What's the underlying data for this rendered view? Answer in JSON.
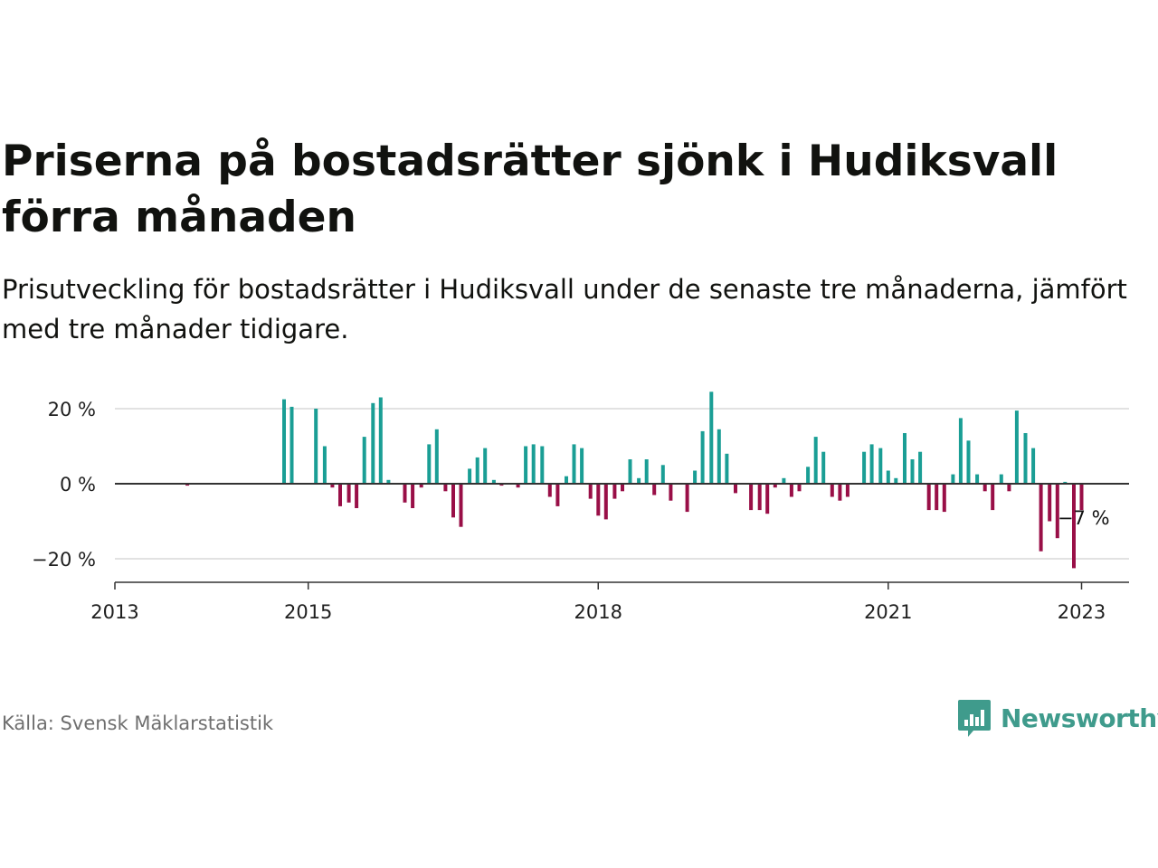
{
  "title": "Priserna på bostadsrätter sjönk i Hudiksvall förra månaden",
  "subtitle": "Prisutveckling för bostadsrätter i Hudiksvall under de senaste tre månaderna, jämfört med tre månader tidigare.",
  "source": "Källa: Svensk Mäklarstatistik",
  "brand": "Newsworthy",
  "colors": {
    "positive": "#1a9e95",
    "negative": "#990f47",
    "brand": "#3f9b8c",
    "axis": "#333333",
    "grid": "#d8d8d8"
  },
  "chart_data": {
    "type": "bar",
    "x_unit": "year (decimal, monthly bars)",
    "xlim": [
      2013.0,
      2023.5
    ],
    "ylim": [
      -26,
      27
    ],
    "y_ticks": [
      20,
      0,
      -20
    ],
    "y_tick_labels": [
      "20 %",
      "0 %",
      "−20 %"
    ],
    "x_ticks": [
      2013,
      2015,
      2018,
      2021,
      2023
    ],
    "x_tick_labels": [
      "2013",
      "2015",
      "2018",
      "2021",
      "2023"
    ],
    "grid": true,
    "annotations": [
      {
        "text": "−7 %",
        "x": 2022.92,
        "y": -7
      }
    ],
    "bars": [
      {
        "x": 2013.75,
        "y": -0.5
      },
      {
        "x": 2014.75,
        "y": 22.5
      },
      {
        "x": 2014.83,
        "y": 20.5
      },
      {
        "x": 2015.08,
        "y": 20
      },
      {
        "x": 2015.17,
        "y": 10
      },
      {
        "x": 2015.25,
        "y": -1
      },
      {
        "x": 2015.33,
        "y": -6
      },
      {
        "x": 2015.42,
        "y": -5
      },
      {
        "x": 2015.5,
        "y": -6.5
      },
      {
        "x": 2015.58,
        "y": 12.5
      },
      {
        "x": 2015.67,
        "y": 21.5
      },
      {
        "x": 2015.75,
        "y": 23
      },
      {
        "x": 2015.83,
        "y": 1
      },
      {
        "x": 2016.0,
        "y": -5
      },
      {
        "x": 2016.08,
        "y": -6.5
      },
      {
        "x": 2016.17,
        "y": -1
      },
      {
        "x": 2016.25,
        "y": 10.5
      },
      {
        "x": 2016.33,
        "y": 14.5
      },
      {
        "x": 2016.42,
        "y": -2
      },
      {
        "x": 2016.5,
        "y": -9
      },
      {
        "x": 2016.58,
        "y": -11.5
      },
      {
        "x": 2016.67,
        "y": 4
      },
      {
        "x": 2016.75,
        "y": 7
      },
      {
        "x": 2016.83,
        "y": 9.5
      },
      {
        "x": 2016.92,
        "y": 1
      },
      {
        "x": 2017.0,
        "y": -0.5
      },
      {
        "x": 2017.17,
        "y": -1
      },
      {
        "x": 2017.25,
        "y": 10
      },
      {
        "x": 2017.33,
        "y": 10.5
      },
      {
        "x": 2017.42,
        "y": 10
      },
      {
        "x": 2017.5,
        "y": -3.5
      },
      {
        "x": 2017.58,
        "y": -6
      },
      {
        "x": 2017.67,
        "y": 2
      },
      {
        "x": 2017.75,
        "y": 10.5
      },
      {
        "x": 2017.83,
        "y": 9.5
      },
      {
        "x": 2017.92,
        "y": -4
      },
      {
        "x": 2018.0,
        "y": -8.5
      },
      {
        "x": 2018.08,
        "y": -9.5
      },
      {
        "x": 2018.17,
        "y": -4
      },
      {
        "x": 2018.25,
        "y": -2
      },
      {
        "x": 2018.33,
        "y": 6.5
      },
      {
        "x": 2018.42,
        "y": 1.5
      },
      {
        "x": 2018.5,
        "y": 6.5
      },
      {
        "x": 2018.58,
        "y": -3
      },
      {
        "x": 2018.67,
        "y": 5
      },
      {
        "x": 2018.75,
        "y": -4.5
      },
      {
        "x": 2018.92,
        "y": -7.5
      },
      {
        "x": 2019.0,
        "y": 3.5
      },
      {
        "x": 2019.08,
        "y": 14
      },
      {
        "x": 2019.17,
        "y": 24.5
      },
      {
        "x": 2019.25,
        "y": 14.5
      },
      {
        "x": 2019.33,
        "y": 8
      },
      {
        "x": 2019.42,
        "y": -2.5
      },
      {
        "x": 2019.58,
        "y": -7
      },
      {
        "x": 2019.67,
        "y": -7
      },
      {
        "x": 2019.75,
        "y": -8
      },
      {
        "x": 2019.83,
        "y": -1
      },
      {
        "x": 2019.92,
        "y": 1.5
      },
      {
        "x": 2020.0,
        "y": -3.5
      },
      {
        "x": 2020.08,
        "y": -2
      },
      {
        "x": 2020.17,
        "y": 4.5
      },
      {
        "x": 2020.25,
        "y": 12.5
      },
      {
        "x": 2020.33,
        "y": 8.5
      },
      {
        "x": 2020.42,
        "y": -3.5
      },
      {
        "x": 2020.5,
        "y": -4.5
      },
      {
        "x": 2020.58,
        "y": -3.5
      },
      {
        "x": 2020.75,
        "y": 8.5
      },
      {
        "x": 2020.83,
        "y": 10.5
      },
      {
        "x": 2020.92,
        "y": 9.5
      },
      {
        "x": 2021.0,
        "y": 3.5
      },
      {
        "x": 2021.08,
        "y": 1.5
      },
      {
        "x": 2021.17,
        "y": 13.5
      },
      {
        "x": 2021.25,
        "y": 6.5
      },
      {
        "x": 2021.33,
        "y": 8.5
      },
      {
        "x": 2021.42,
        "y": -7
      },
      {
        "x": 2021.5,
        "y": -7
      },
      {
        "x": 2021.58,
        "y": -7.5
      },
      {
        "x": 2021.67,
        "y": 2.5
      },
      {
        "x": 2021.75,
        "y": 17.5
      },
      {
        "x": 2021.83,
        "y": 11.5
      },
      {
        "x": 2021.92,
        "y": 2.5
      },
      {
        "x": 2022.0,
        "y": -2
      },
      {
        "x": 2022.08,
        "y": -7
      },
      {
        "x": 2022.17,
        "y": 2.5
      },
      {
        "x": 2022.25,
        "y": -2
      },
      {
        "x": 2022.33,
        "y": 19.5
      },
      {
        "x": 2022.42,
        "y": 13.5
      },
      {
        "x": 2022.5,
        "y": 9.5
      },
      {
        "x": 2022.58,
        "y": -18
      },
      {
        "x": 2022.67,
        "y": -10
      },
      {
        "x": 2022.75,
        "y": -14.5
      },
      {
        "x": 2022.83,
        "y": 0.5
      },
      {
        "x": 2022.92,
        "y": -22.5
      },
      {
        "x": 2023.0,
        "y": -7
      }
    ]
  }
}
